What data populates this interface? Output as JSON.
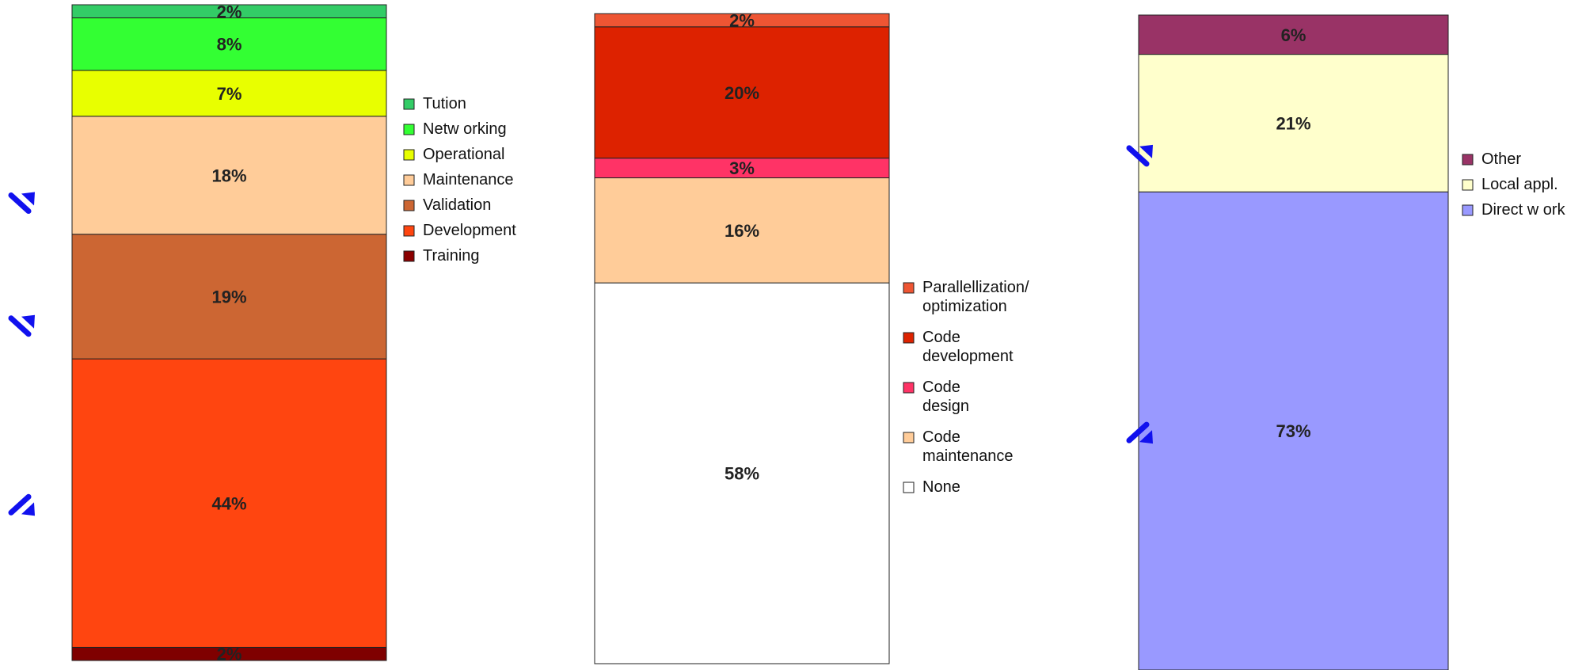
{
  "chart_data": [
    {
      "type": "bar",
      "stacked": true,
      "title": "",
      "xlabel": "",
      "ylabel": "",
      "ylim": [
        0,
        100
      ],
      "grid": false,
      "legend_placement": "right",
      "series": [
        {
          "name": "Training",
          "values": [
            2
          ],
          "label": "2%",
          "color": "#7f0000"
        },
        {
          "name": "Development",
          "values": [
            44
          ],
          "label": "44%",
          "color": "#ff4510"
        },
        {
          "name": "Validation",
          "values": [
            19
          ],
          "label": "19%",
          "color": "#cc6633"
        },
        {
          "name": "Maintenance",
          "values": [
            18
          ],
          "label": "18%",
          "color": "#ffcc99"
        },
        {
          "name": "Operational",
          "values": [
            7
          ],
          "label": "7%",
          "color": "#e8ff00"
        },
        {
          "name": "Netw orking",
          "values": [
            8
          ],
          "label": "8%",
          "color": "#33ff33"
        },
        {
          "name": "Tution",
          "values": [
            2
          ],
          "label": "2%",
          "color": "#33cc66"
        }
      ],
      "legend": [
        {
          "lines": [
            "Tution"
          ],
          "color": "#33cc66"
        },
        {
          "lines": [
            "Netw orking"
          ],
          "color": "#33ff33"
        },
        {
          "lines": [
            "Operational"
          ],
          "color": "#e8ff00"
        },
        {
          "lines": [
            "Maintenance"
          ],
          "color": "#ffcc99"
        },
        {
          "lines": [
            "Validation"
          ],
          "color": "#cc6633"
        },
        {
          "lines": [
            "Development"
          ],
          "color": "#ff4510"
        },
        {
          "lines": [
            "Training"
          ],
          "color": "#8b0000"
        }
      ],
      "arrows": [
        {
          "series": "Maintenance",
          "direction": "up"
        },
        {
          "series": "Validation",
          "direction": "up"
        },
        {
          "series": "Development",
          "direction": "down"
        }
      ]
    },
    {
      "type": "bar",
      "stacked": true,
      "title": "",
      "xlabel": "",
      "ylabel": "",
      "ylim": [
        0,
        100
      ],
      "grid": false,
      "legend_placement": "right",
      "series": [
        {
          "name": "None",
          "values": [
            58
          ],
          "label": "58%",
          "color": "#ffffff"
        },
        {
          "name": "Code maintenance",
          "values": [
            16
          ],
          "label": "16%",
          "color": "#ffcc99"
        },
        {
          "name": "Code design",
          "values": [
            3
          ],
          "label": "3%",
          "color": "#ff3366"
        },
        {
          "name": "Code development",
          "values": [
            20
          ],
          "label": "20%",
          "color": "#dd2200"
        },
        {
          "name": "Parallellization/ optimization",
          "values": [
            2
          ],
          "label": "2%",
          "color": "#ee5533"
        }
      ],
      "legend": [
        {
          "lines": [
            "Parallellization/",
            "optimization"
          ],
          "color": "#ee5533"
        },
        {
          "lines": [
            "Code",
            "development"
          ],
          "color": "#dd2200"
        },
        {
          "lines": [
            "Code",
            "design"
          ],
          "color": "#ff3366"
        },
        {
          "lines": [
            "Code",
            "maintenance"
          ],
          "color": "#ffcc99"
        },
        {
          "lines": [
            "None"
          ],
          "color": "#ffffff"
        }
      ],
      "arrows": []
    },
    {
      "type": "bar",
      "stacked": true,
      "title": "",
      "xlabel": "",
      "ylabel": "",
      "ylim": [
        0,
        100
      ],
      "grid": false,
      "legend_placement": "right",
      "series": [
        {
          "name": "Direct w ork",
          "values": [
            73
          ],
          "label": "73%",
          "color": "#9999ff"
        },
        {
          "name": "Local appl.",
          "values": [
            21
          ],
          "label": "21%",
          "color": "#ffffcc"
        },
        {
          "name": "Other",
          "values": [
            6
          ],
          "label": "6%",
          "color": "#993366"
        }
      ],
      "legend": [
        {
          "lines": [
            "Other"
          ],
          "color": "#993366"
        },
        {
          "lines": [
            "Local appl."
          ],
          "color": "#ffffcc"
        },
        {
          "lines": [
            "Direct w ork"
          ],
          "color": "#9999ff"
        }
      ],
      "arrows": [
        {
          "series": "Local appl.",
          "direction": "up"
        },
        {
          "series": "Direct w ork",
          "direction": "down"
        }
      ]
    }
  ],
  "colors": {
    "arrow": "#1111ee",
    "outline": "#222222",
    "background": "#ffffff"
  }
}
